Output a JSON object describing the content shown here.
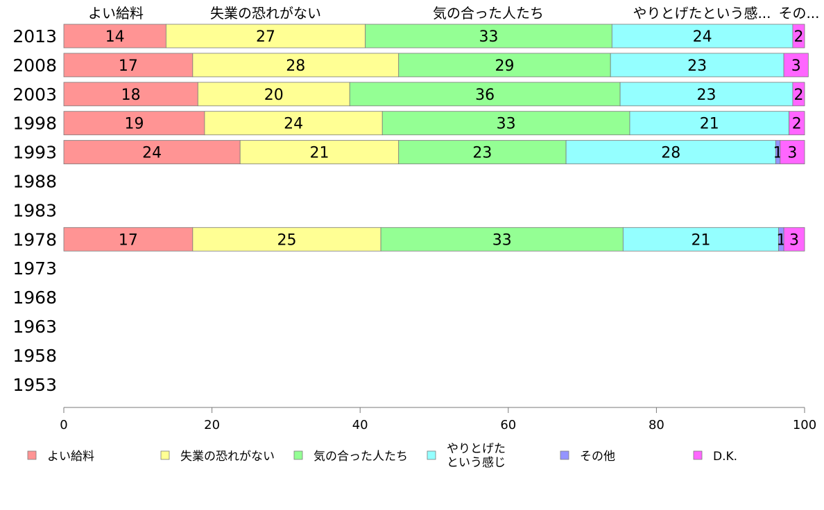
{
  "chart_data": {
    "type": "bar",
    "orientation": "horizontal",
    "stacked": true,
    "categories": [
      "2013",
      "2008",
      "2003",
      "1998",
      "1993",
      "1988",
      "1983",
      "1978",
      "1973",
      "1968",
      "1963",
      "1958",
      "1953"
    ],
    "series": [
      {
        "name": "よい給料",
        "color": "#ff9494",
        "values": [
          14,
          17,
          18,
          19,
          24,
          null,
          null,
          17,
          null,
          null,
          null,
          null,
          null
        ]
      },
      {
        "name": "失業の恐れがない",
        "color": "#ffff94",
        "values": [
          27,
          28,
          20,
          24,
          21,
          null,
          null,
          25,
          null,
          null,
          null,
          null,
          null
        ]
      },
      {
        "name": "気の合った人たち",
        "color": "#94ff94",
        "values": [
          33,
          29,
          36,
          33,
          23,
          null,
          null,
          33,
          null,
          null,
          null,
          null,
          null
        ]
      },
      {
        "name": "やりとげたという感じ",
        "color": "#94ffff",
        "values": [
          24,
          23,
          23,
          21,
          28,
          null,
          null,
          21,
          null,
          null,
          null,
          null,
          null
        ]
      },
      {
        "name": "その他",
        "color": "#9494ff",
        "values": [
          0,
          0,
          0,
          0,
          1,
          null,
          null,
          1,
          null,
          null,
          null,
          null,
          null
        ]
      },
      {
        "name": "D.K.",
        "color": "#ff66ff",
        "values": [
          2,
          3,
          2,
          2,
          3,
          null,
          null,
          3,
          null,
          null,
          null,
          null,
          null
        ]
      }
    ],
    "bar_segments_percent": [
      [
        13.8,
        26.9,
        33.3,
        24.4,
        0,
        1.6
      ],
      [
        17.4,
        27.8,
        28.6,
        23.4,
        0,
        3.3
      ],
      [
        18.1,
        20.5,
        36.5,
        23.3,
        0,
        1.6
      ],
      [
        19.0,
        24.0,
        33.4,
        21.5,
        0,
        2.1
      ],
      [
        23.8,
        21.4,
        22.6,
        28.3,
        0.6,
        3.3
      ],
      null,
      null,
      [
        17.4,
        25.4,
        32.7,
        21.0,
        0.7,
        2.8
      ],
      null,
      null,
      null,
      null,
      null
    ],
    "top_labels": [
      "よい給料",
      "失業の恐れがない",
      "気の合った人たち",
      "やりとげたという感...",
      "その..."
    ],
    "xlim": [
      0,
      100
    ],
    "x_ticks": [
      "0",
      "20",
      "40",
      "60",
      "80",
      "100"
    ],
    "grid": false,
    "legend_position": "bottom",
    "legend": [
      {
        "label_lines": [
          "よい給料"
        ],
        "color": "#ff9494"
      },
      {
        "label_lines": [
          "失業の恐れがない"
        ],
        "color": "#ffff94"
      },
      {
        "label_lines": [
          "気の合った人たち"
        ],
        "color": "#94ff94"
      },
      {
        "label_lines": [
          "やりとげた",
          "という感じ"
        ],
        "color": "#94ffff"
      },
      {
        "label_lines": [
          "その他"
        ],
        "color": "#9494ff"
      },
      {
        "label_lines": [
          "D.K."
        ],
        "color": "#ff66ff"
      }
    ]
  }
}
